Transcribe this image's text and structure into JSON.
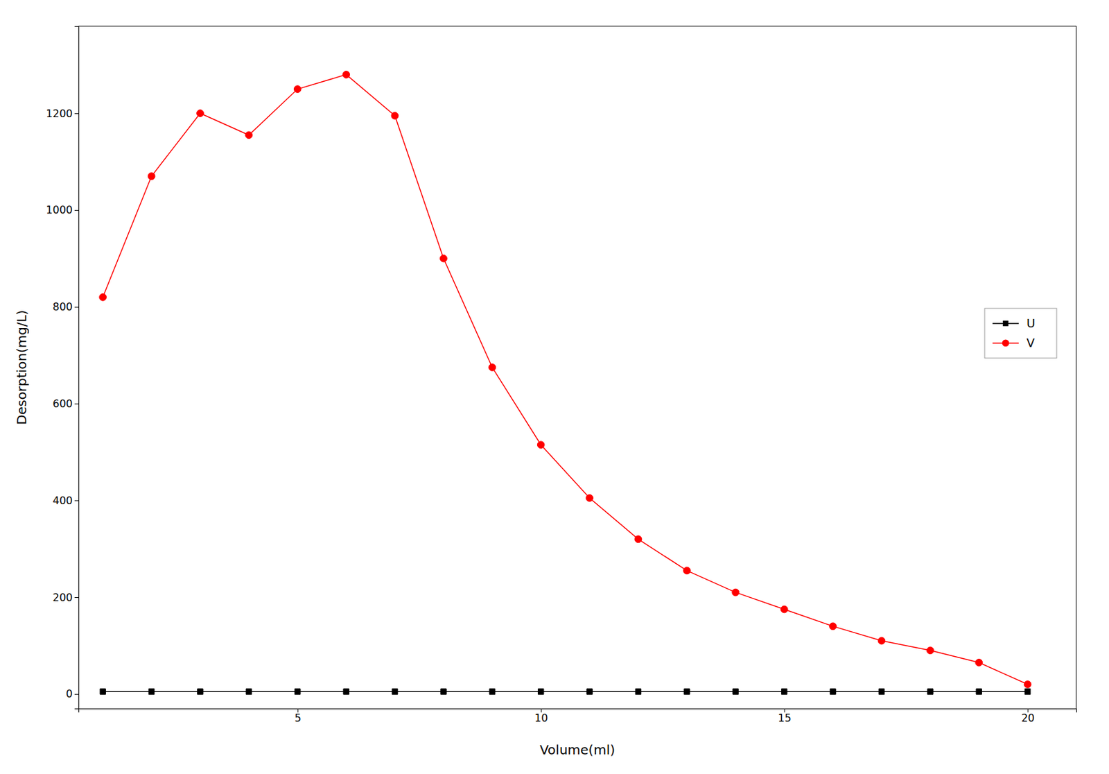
{
  "chart_data": {
    "type": "line",
    "xlabel": "Volume(ml)",
    "ylabel": "Desorption(mg/L)",
    "x": [
      1,
      2,
      3,
      4,
      5,
      6,
      7,
      8,
      9,
      10,
      11,
      12,
      13,
      14,
      15,
      16,
      17,
      18,
      19,
      20
    ],
    "series": [
      {
        "name": "U",
        "color": "#000000",
        "marker": "square",
        "values": [
          5,
          5,
          5,
          5,
          5,
          5,
          5,
          5,
          5,
          5,
          5,
          5,
          5,
          5,
          5,
          5,
          5,
          5,
          5,
          5
        ]
      },
      {
        "name": "V",
        "color": "#ff0000",
        "marker": "circle",
        "values": [
          820,
          1070,
          1200,
          1155,
          1250,
          1280,
          1195,
          900,
          675,
          515,
          405,
          320,
          255,
          210,
          175,
          140,
          110,
          90,
          65,
          20
        ]
      }
    ],
    "xlim": [
      0.5,
      21
    ],
    "ylim": [
      -30,
      1380
    ],
    "xticks": [
      5,
      10,
      15,
      20
    ],
    "yticks": [
      0,
      200,
      400,
      600,
      800,
      1000,
      1200
    ],
    "grid": false,
    "legend": "right"
  }
}
